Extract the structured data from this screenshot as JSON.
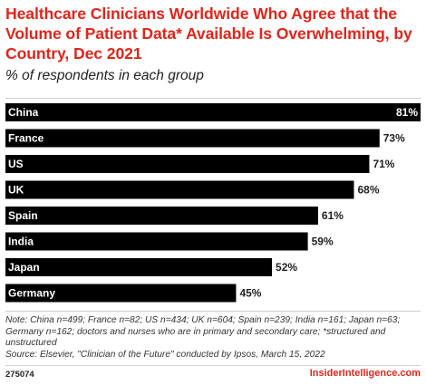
{
  "header": {
    "title": "Healthcare Clinicians Worldwide Who Agree that the Volume of Patient Data* Available Is Overwhelming, by Country, Dec 2021",
    "subtitle": "% of respondents in each group"
  },
  "chart_data": {
    "type": "bar",
    "orientation": "horizontal",
    "categories": [
      "China",
      "France",
      "US",
      "UK",
      "Spain",
      "India",
      "Japan",
      "Germany"
    ],
    "values": [
      81,
      73,
      71,
      68,
      61,
      59,
      52,
      45
    ],
    "value_labels": [
      "81%",
      "73%",
      "71%",
      "68%",
      "61%",
      "59%",
      "52%",
      "45%"
    ],
    "unit": "%",
    "xlim": [
      0,
      81
    ],
    "bar_color": "#000000",
    "grid": false,
    "legend": "none"
  },
  "footer": {
    "note": "Note: China n=499; France n=82; US n=434; UK n=604; Spain n=239; India n=161; Japan n=63; Germany n=162; doctors and nurses who are in primary and secondary care; *structured and unstructured",
    "source": "Source: Elsevier, \"Clinician of the Future\" conducted by Ipsos, March 15, 2022",
    "chart_id": "275074",
    "brand": "InsiderIntelligence.com"
  },
  "colors": {
    "accent": "#e2251b",
    "bar": "#000000",
    "text": "#222222"
  }
}
